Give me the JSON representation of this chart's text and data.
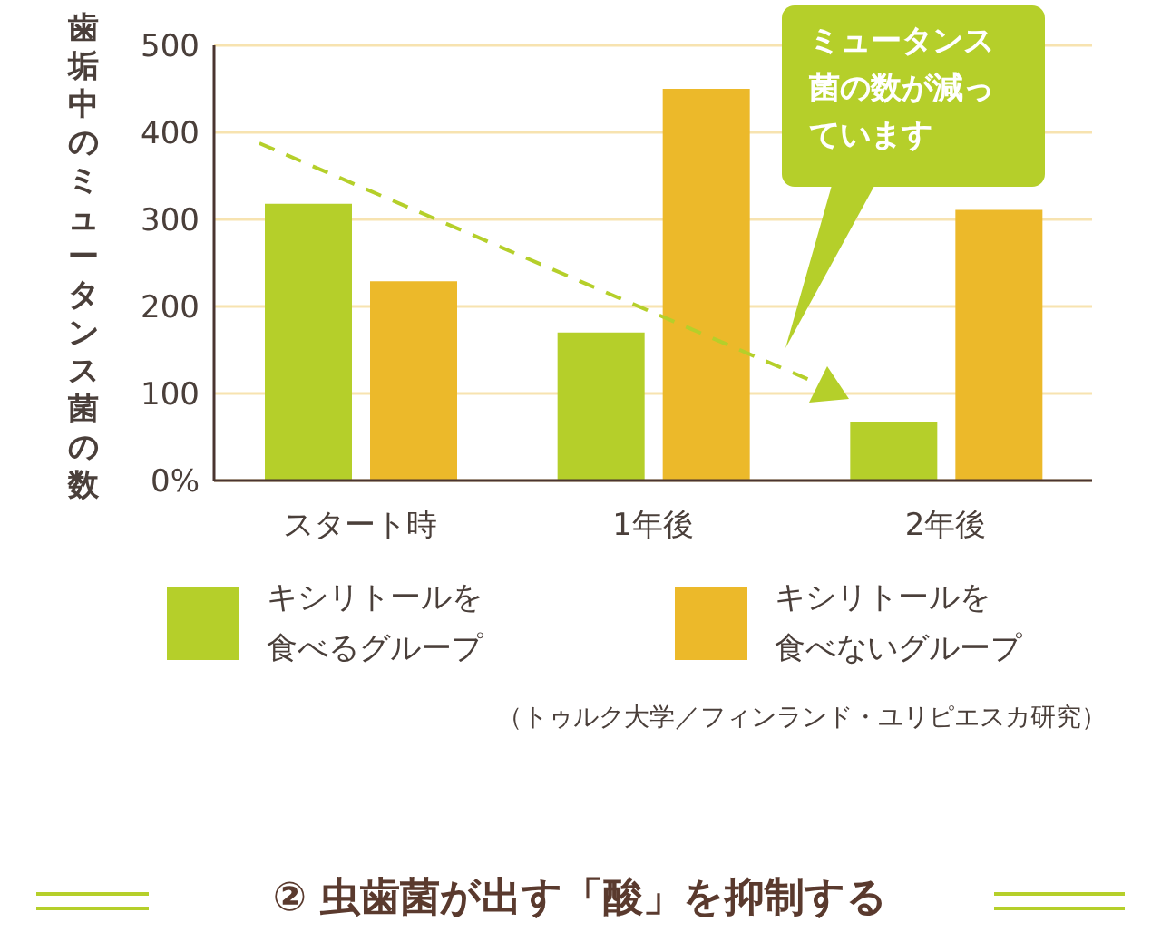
{
  "chart_data": {
    "type": "bar",
    "title": "② 虫歯菌が出す「酸」を抑制する",
    "ylabel": "歯垢中のミュータンス菌の数",
    "categories": [
      "スタート時",
      "1年後",
      "2年後"
    ],
    "series": [
      {
        "name": "キシリトールを食べるグループ",
        "color": "#b5cf2a",
        "values": [
          318,
          170,
          67
        ]
      },
      {
        "name": "キシリトールを食べないグループ",
        "color": "#ecb92a",
        "values": [
          229,
          450,
          311
        ]
      }
    ],
    "ylim": [
      0,
      500
    ],
    "yticks": [
      {
        "value": 0,
        "label": "0%"
      },
      100,
      200,
      300,
      400,
      500
    ],
    "grid": "y",
    "legend": "bottom",
    "annotations": [
      "ミュータンス菌の数が減っています",
      "（トゥルク大学／フィンランド・ユリピエスカ研究）"
    ]
  }
}
